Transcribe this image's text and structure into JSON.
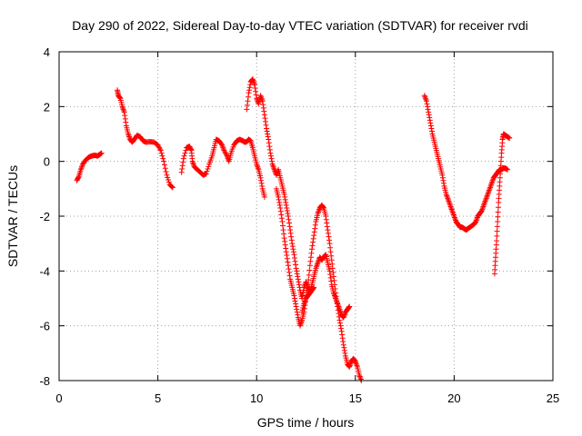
{
  "chart_data": {
    "type": "scatter",
    "title": "Day 290 of 2022, Sidereal Day-to-day VTEC variation (SDTVAR) for receiver rvdi",
    "xlabel": "GPS time / hours",
    "ylabel": "SDTVAR / TECUs",
    "xlim": [
      0,
      25
    ],
    "ylim": [
      -8,
      4
    ],
    "xticks": [
      0,
      5,
      10,
      15,
      20,
      25
    ],
    "yticks": [
      -8,
      -6,
      -4,
      -2,
      0,
      2,
      4
    ],
    "grid": true,
    "marker": "plus",
    "color": "#ff0000",
    "series": [
      {
        "name": "SDTVAR",
        "segments": [
          [
            [
              0.9,
              -0.7
            ],
            [
              1.0,
              -0.55
            ],
            [
              1.1,
              -0.3
            ],
            [
              1.2,
              -0.1
            ],
            [
              1.35,
              0.05
            ],
            [
              1.5,
              0.15
            ],
            [
              1.65,
              0.2
            ],
            [
              1.8,
              0.22
            ],
            [
              1.95,
              0.2
            ],
            [
              2.05,
              0.25
            ],
            [
              2.15,
              0.3
            ]
          ],
          [
            [
              2.95,
              2.6
            ],
            [
              3.0,
              2.4
            ],
            [
              3.1,
              2.3
            ],
            [
              3.2,
              2.0
            ],
            [
              3.3,
              1.8
            ],
            [
              3.4,
              1.3
            ],
            [
              3.5,
              1.0
            ],
            [
              3.6,
              0.8
            ],
            [
              3.7,
              0.7
            ],
            [
              3.8,
              0.8
            ],
            [
              3.95,
              0.95
            ],
            [
              4.1,
              0.9
            ],
            [
              4.25,
              0.75
            ],
            [
              4.4,
              0.7
            ],
            [
              4.6,
              0.72
            ],
            [
              4.8,
              0.7
            ],
            [
              5.0,
              0.6
            ],
            [
              5.15,
              0.4
            ],
            [
              5.3,
              0.0
            ],
            [
              5.45,
              -0.5
            ],
            [
              5.6,
              -0.85
            ],
            [
              5.75,
              -0.95
            ]
          ],
          [
            [
              6.2,
              -0.4
            ],
            [
              6.3,
              0.1
            ],
            [
              6.45,
              0.5
            ],
            [
              6.6,
              0.55
            ],
            [
              6.7,
              0.4
            ],
            [
              6.75,
              0.0
            ],
            [
              6.85,
              -0.2
            ],
            [
              7.0,
              -0.3
            ],
            [
              7.15,
              -0.4
            ],
            [
              7.3,
              -0.5
            ],
            [
              7.45,
              -0.45
            ],
            [
              7.6,
              -0.1
            ],
            [
              7.75,
              0.2
            ],
            [
              7.85,
              0.5
            ],
            [
              7.95,
              0.8
            ],
            [
              8.1,
              0.75
            ],
            [
              8.25,
              0.6
            ],
            [
              8.35,
              0.4
            ],
            [
              8.5,
              0.2
            ],
            [
              8.6,
              0.0
            ],
            [
              8.7,
              0.3
            ],
            [
              8.85,
              0.6
            ],
            [
              9.0,
              0.75
            ],
            [
              9.15,
              0.8
            ],
            [
              9.3,
              0.75
            ],
            [
              9.4,
              0.7
            ],
            [
              9.5,
              0.72
            ],
            [
              9.6,
              0.8
            ],
            [
              9.7,
              0.75
            ],
            [
              9.8,
              0.5
            ],
            [
              9.9,
              0.2
            ],
            [
              10.0,
              -0.1
            ],
            [
              10.1,
              -0.3
            ],
            [
              10.2,
              -0.6
            ],
            [
              10.3,
              -1.0
            ],
            [
              10.4,
              -1.3
            ]
          ],
          [
            [
              9.5,
              1.9
            ],
            [
              9.6,
              2.5
            ],
            [
              9.7,
              2.9
            ],
            [
              9.8,
              3.0
            ],
            [
              9.9,
              2.8
            ],
            [
              10.0,
              2.3
            ],
            [
              10.1,
              2.1
            ],
            [
              10.2,
              2.4
            ],
            [
              10.3,
              2.2
            ],
            [
              10.4,
              1.7
            ],
            [
              10.5,
              1.2
            ],
            [
              10.6,
              0.8
            ],
            [
              10.7,
              0.3
            ],
            [
              10.8,
              -0.1
            ],
            [
              10.9,
              -0.3
            ],
            [
              11.0,
              -0.5
            ],
            [
              11.1,
              -0.3
            ],
            [
              11.2,
              -0.6
            ],
            [
              11.3,
              -0.9
            ],
            [
              11.4,
              -1.2
            ],
            [
              11.5,
              -1.6
            ],
            [
              11.6,
              -2.0
            ],
            [
              11.7,
              -2.5
            ],
            [
              11.8,
              -3.0
            ],
            [
              11.9,
              -3.4
            ],
            [
              12.0,
              -3.9
            ],
            [
              12.1,
              -4.3
            ],
            [
              12.2,
              -4.7
            ],
            [
              12.3,
              -5.0
            ],
            [
              12.4,
              -4.6
            ],
            [
              12.5,
              -4.4
            ],
            [
              12.6,
              -4.6
            ],
            [
              12.7,
              -4.8
            ],
            [
              12.8,
              -4.5
            ],
            [
              12.9,
              -4.2
            ],
            [
              13.0,
              -3.9
            ],
            [
              13.1,
              -3.7
            ],
            [
              13.2,
              -3.5
            ],
            [
              13.3,
              -3.6
            ],
            [
              13.4,
              -3.5
            ],
            [
              13.5,
              -3.4
            ],
            [
              13.6,
              -3.7
            ],
            [
              13.7,
              -4.0
            ],
            [
              13.8,
              -4.5
            ],
            [
              13.9,
              -4.8
            ],
            [
              14.0,
              -5.0
            ],
            [
              14.1,
              -5.2
            ],
            [
              14.2,
              -5.4
            ],
            [
              14.3,
              -5.6
            ],
            [
              14.4,
              -5.7
            ],
            [
              14.5,
              -5.5
            ],
            [
              14.6,
              -5.4
            ],
            [
              14.7,
              -5.3
            ]
          ],
          [
            [
              11.0,
              -1.0
            ],
            [
              11.1,
              -1.3
            ],
            [
              11.2,
              -1.7
            ],
            [
              11.3,
              -2.2
            ],
            [
              11.4,
              -2.8
            ],
            [
              11.5,
              -3.3
            ],
            [
              11.6,
              -3.8
            ],
            [
              11.7,
              -4.3
            ],
            [
              11.8,
              -4.6
            ],
            [
              11.9,
              -4.9
            ],
            [
              12.0,
              -5.3
            ],
            [
              12.1,
              -5.7
            ],
            [
              12.2,
              -6.0
            ],
            [
              12.3,
              -5.8
            ],
            [
              12.4,
              -5.5
            ],
            [
              12.5,
              -5.0
            ],
            [
              12.6,
              -4.5
            ],
            [
              12.7,
              -3.8
            ],
            [
              12.8,
              -3.2
            ],
            [
              12.9,
              -2.7
            ],
            [
              13.0,
              -2.2
            ],
            [
              13.1,
              -1.9
            ],
            [
              13.2,
              -1.7
            ],
            [
              13.3,
              -1.6
            ],
            [
              13.4,
              -1.7
            ],
            [
              13.5,
              -2.0
            ],
            [
              13.6,
              -2.5
            ],
            [
              13.7,
              -3.0
            ],
            [
              13.8,
              -3.6
            ],
            [
              13.9,
              -4.2
            ],
            [
              14.0,
              -4.8
            ],
            [
              14.1,
              -5.3
            ],
            [
              14.2,
              -5.8
            ],
            [
              14.3,
              -6.2
            ],
            [
              14.4,
              -6.7
            ],
            [
              14.5,
              -7.1
            ],
            [
              14.6,
              -7.4
            ],
            [
              14.7,
              -7.5
            ],
            [
              14.8,
              -7.3
            ],
            [
              14.9,
              -7.2
            ],
            [
              15.0,
              -7.3
            ],
            [
              15.1,
              -7.5
            ],
            [
              15.2,
              -7.8
            ],
            [
              15.3,
              -8.0
            ]
          ],
          [
            [
              12.3,
              -5.5
            ],
            [
              12.4,
              -5.2
            ],
            [
              12.5,
              -5.0
            ],
            [
              12.6,
              -4.9
            ],
            [
              12.7,
              -4.8
            ],
            [
              12.8,
              -4.7
            ],
            [
              12.9,
              -4.6
            ]
          ],
          [
            [
              18.5,
              2.4
            ],
            [
              18.6,
              2.2
            ],
            [
              18.7,
              1.8
            ],
            [
              18.8,
              1.4
            ],
            [
              18.9,
              1.0
            ],
            [
              19.0,
              0.7
            ],
            [
              19.1,
              0.4
            ],
            [
              19.2,
              0.1
            ],
            [
              19.3,
              -0.2
            ],
            [
              19.4,
              -0.5
            ],
            [
              19.5,
              -0.9
            ],
            [
              19.6,
              -1.2
            ],
            [
              19.7,
              -1.4
            ],
            [
              19.8,
              -1.6
            ],
            [
              19.9,
              -1.8
            ],
            [
              20.0,
              -2.0
            ],
            [
              20.1,
              -2.2
            ],
            [
              20.2,
              -2.3
            ],
            [
              20.3,
              -2.4
            ],
            [
              20.4,
              -2.4
            ],
            [
              20.5,
              -2.45
            ],
            [
              20.6,
              -2.5
            ],
            [
              20.7,
              -2.45
            ],
            [
              20.8,
              -2.4
            ],
            [
              20.9,
              -2.35
            ],
            [
              21.0,
              -2.3
            ],
            [
              21.1,
              -2.2
            ],
            [
              21.2,
              -2.0
            ],
            [
              21.3,
              -1.9
            ],
            [
              21.4,
              -1.8
            ],
            [
              21.5,
              -1.6
            ],
            [
              21.6,
              -1.4
            ],
            [
              21.7,
              -1.2
            ],
            [
              21.8,
              -1.0
            ],
            [
              21.9,
              -0.8
            ],
            [
              22.0,
              -0.6
            ],
            [
              22.1,
              -0.5
            ],
            [
              22.2,
              -0.4
            ],
            [
              22.3,
              -0.3
            ],
            [
              22.4,
              -0.3
            ],
            [
              22.5,
              -0.25
            ],
            [
              22.6,
              -0.25
            ],
            [
              22.7,
              -0.3
            ]
          ],
          [
            [
              22.05,
              -4.1
            ],
            [
              22.1,
              -3.5
            ],
            [
              22.15,
              -2.9
            ],
            [
              22.2,
              -2.2
            ],
            [
              22.25,
              -1.5
            ],
            [
              22.3,
              -0.9
            ],
            [
              22.35,
              -0.3
            ],
            [
              22.4,
              0.3
            ],
            [
              22.45,
              0.8
            ],
            [
              22.5,
              1.0
            ],
            [
              22.6,
              0.95
            ],
            [
              22.7,
              0.9
            ],
            [
              22.8,
              0.85
            ]
          ]
        ]
      }
    ]
  }
}
